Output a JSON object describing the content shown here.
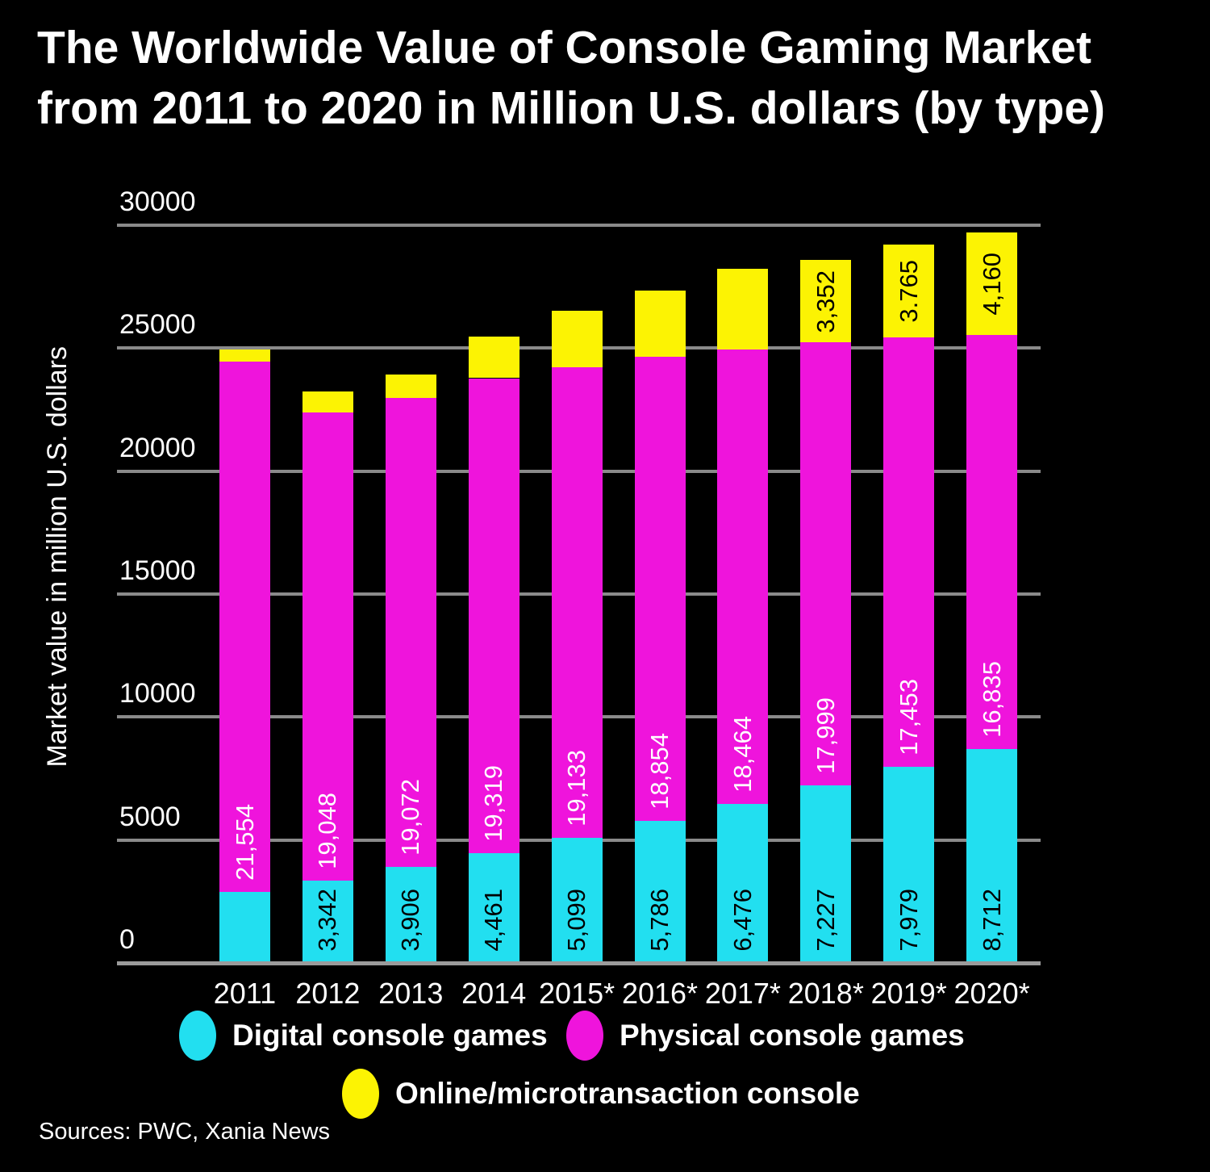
{
  "title": {
    "line1": "The Worldwide Value of Console Gaming Market",
    "line2": "from 2011 to 2020 in Million U.S. dollars (by type)"
  },
  "chart_data": {
    "type": "bar",
    "stacked": true,
    "title": "The Worldwide Value of Console Gaming Market from 2011 to 2020 in Million U.S. dollars (by type)",
    "ylabel": "Market value in million U.S. dollars",
    "xlabel": "",
    "ylim": [
      0,
      30000
    ],
    "y_ticks": [
      0,
      5000,
      10000,
      15000,
      20000,
      25000,
      30000
    ],
    "y_tick_labels": [
      "0",
      "5000",
      "10000",
      "15000",
      "20000",
      "25000",
      "30000"
    ],
    "grid": true,
    "legend_position": "bottom",
    "categories": [
      "2011",
      "2012",
      "2013",
      "2014",
      "2015*",
      "2016*",
      "2017*",
      "2018*",
      "2019*",
      "2020*"
    ],
    "series": [
      {
        "name": "Digital console games",
        "color": "#22dff0",
        "label_color": "#000000",
        "values": [
          2900,
          3342,
          3906,
          4461,
          5099,
          5786,
          6476,
          7227,
          7979,
          8712
        ],
        "bar_labels": [
          null,
          "3,342",
          "3,906",
          "4,461",
          "5,099",
          "5,786",
          "6,476",
          "7,227",
          "7,979",
          "8,712"
        ]
      },
      {
        "name": "Physical console games",
        "color": "#ef14dc",
        "label_color": "#ffffff",
        "values": [
          21554,
          19048,
          19072,
          19319,
          19133,
          18854,
          18464,
          17999,
          17453,
          16835
        ],
        "bar_labels": [
          "21,554",
          "19,048",
          "19,072",
          "19,319",
          "19,133",
          "18,854",
          "18,464",
          "17,999",
          "17,453",
          "16,835"
        ]
      },
      {
        "name": "Online/microtransaction console",
        "color": "#fcf303",
        "label_color": "#000000",
        "values": [
          500,
          850,
          950,
          1700,
          2300,
          2700,
          3300,
          3352,
          3765,
          4160
        ],
        "bar_labels": [
          null,
          null,
          null,
          null,
          null,
          null,
          null,
          "3,352",
          "3.765",
          "4,160"
        ]
      }
    ]
  },
  "legend": {
    "items": [
      {
        "label": "Digital console games",
        "color": "#22dff0"
      },
      {
        "label": "Physical console games",
        "color": "#ef14dc"
      },
      {
        "label": "Online/microtransaction console",
        "color": "#fcf303"
      }
    ]
  },
  "source": {
    "text": "Sources: PWC, Xania News"
  },
  "colors": {
    "background": "#000000",
    "text": "#ffffff",
    "gridline": "#8a8a8a",
    "axisline": "#9b9b9b"
  }
}
